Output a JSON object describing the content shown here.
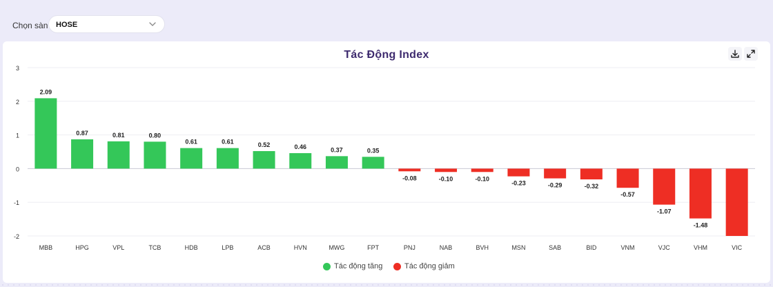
{
  "filter": {
    "label": "Chọn sàn",
    "selected": "HOSE"
  },
  "chart_data": {
    "type": "bar",
    "title": "Tác Động Index",
    "xlabel": "",
    "ylabel": "",
    "ylim": [
      -2,
      3
    ],
    "yticks": [
      3,
      2,
      1,
      0,
      -1,
      -2
    ],
    "grid": true,
    "legend_position": "bottom-center",
    "categories": [
      "MBB",
      "HPG",
      "VPL",
      "TCB",
      "HDB",
      "LPB",
      "ACB",
      "HVN",
      "MWG",
      "FPT",
      "PNJ",
      "NAB",
      "BVH",
      "MSN",
      "SAB",
      "BID",
      "VNM",
      "VJC",
      "VHM",
      "VIC"
    ],
    "values": [
      2.09,
      0.87,
      0.81,
      0.8,
      0.61,
      0.61,
      0.52,
      0.46,
      0.37,
      0.35,
      -0.08,
      -0.1,
      -0.1,
      -0.23,
      -0.29,
      -0.32,
      -0.57,
      -1.07,
      -1.48,
      -2.0
    ],
    "data_labels": [
      "2.09",
      "0.87",
      "0.81",
      "0.80",
      "0.61",
      "0.61",
      "0.52",
      "0.46",
      "0.37",
      "0.35",
      "-0.08",
      "-0.10",
      "-0.10",
      "-0.23",
      "-0.29",
      "-0.32",
      "-0.57",
      "-1.07",
      "-1.48",
      ""
    ],
    "legend": [
      {
        "name": "Tác động tăng",
        "color": "#34c759"
      },
      {
        "name": "Tác động giảm",
        "color": "#ee2e24"
      }
    ],
    "colors": {
      "positive": "#34c759",
      "negative": "#ee2e24"
    }
  },
  "toolbar": {
    "download_icon": "download-icon",
    "expand_icon": "expand-icon"
  }
}
